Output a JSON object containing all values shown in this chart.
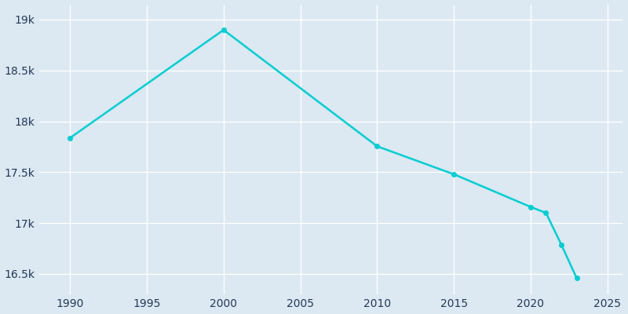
{
  "years": [
    1990,
    2000,
    2010,
    2015,
    2020,
    2021,
    2022,
    2023
  ],
  "population": [
    17837,
    18899,
    17755,
    17480,
    17159,
    17100,
    16789,
    16459
  ],
  "line_color": "#00CED1",
  "marker_color": "#00CED1",
  "plot_bg_color": "#dce8f2",
  "fig_bg_color": "#dce8f2",
  "grid_color": "#ffffff",
  "tick_label_color": "#253858",
  "xlim": [
    1988,
    2026
  ],
  "ylim": [
    16300,
    19150
  ],
  "yticks": [
    16500,
    17000,
    17500,
    18000,
    18500,
    19000
  ],
  "ytick_labels": [
    "16.5k",
    "17k",
    "17.5k",
    "18k",
    "18.5k",
    "19k"
  ],
  "xticks": [
    1990,
    1995,
    2000,
    2005,
    2010,
    2015,
    2020,
    2025
  ],
  "linewidth": 1.8,
  "markersize": 4
}
